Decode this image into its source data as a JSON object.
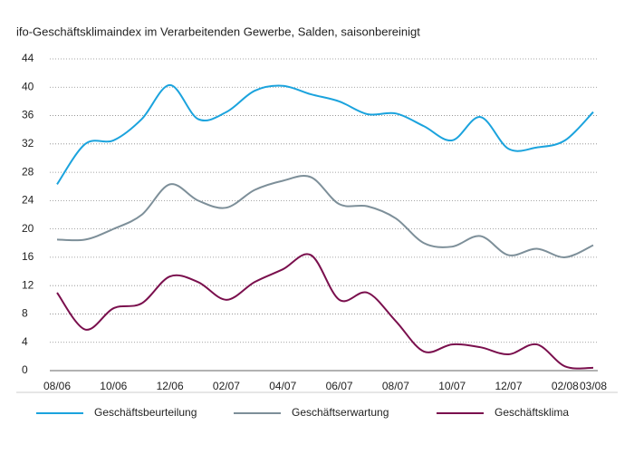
{
  "chart_data": {
    "type": "line",
    "title": "ifo-Geschäftsklimaindex im Verarbeitenden Gewerbe, Salden, saisonbereinigt",
    "categories": [
      "08/06",
      null,
      "10/06",
      null,
      "12/06",
      null,
      "02/07",
      null,
      "04/07",
      null,
      "06/07",
      null,
      "08/07",
      null,
      "10/07",
      null,
      "12/07",
      null,
      "02/08",
      "03/08"
    ],
    "series": [
      {
        "name": "Geschäftsbeurteilung",
        "color": "#1ba3dd",
        "values": [
          26.3,
          32,
          32.5,
          35.5,
          40.3,
          35.5,
          36.5,
          39.5,
          40.2,
          39,
          38,
          36.2,
          36.3,
          34.5,
          32.5,
          35.8,
          31.3,
          31.5,
          32.5,
          36.5
        ]
      },
      {
        "name": "Geschäftserwartung",
        "color": "#7d8f99",
        "values": [
          18.5,
          18.5,
          20,
          22,
          26.3,
          24,
          23,
          25.5,
          26.8,
          27.3,
          23.5,
          23.2,
          21.5,
          18,
          17.5,
          19,
          16.3,
          17.2,
          16,
          17.7
        ]
      },
      {
        "name": "Geschäftsklima",
        "color": "#7a0f4d",
        "values": [
          11,
          5.8,
          8.8,
          9.5,
          13.3,
          12.5,
          10,
          12.5,
          14.3,
          16.3,
          10,
          11,
          7,
          2.7,
          3.7,
          3.3,
          2.3,
          3.7,
          0.6,
          0.4
        ]
      }
    ],
    "ylim": [
      0,
      44
    ],
    "yticks": [
      0,
      4,
      8,
      12,
      16,
      20,
      24,
      28,
      32,
      36,
      40,
      44
    ],
    "grid": true
  }
}
